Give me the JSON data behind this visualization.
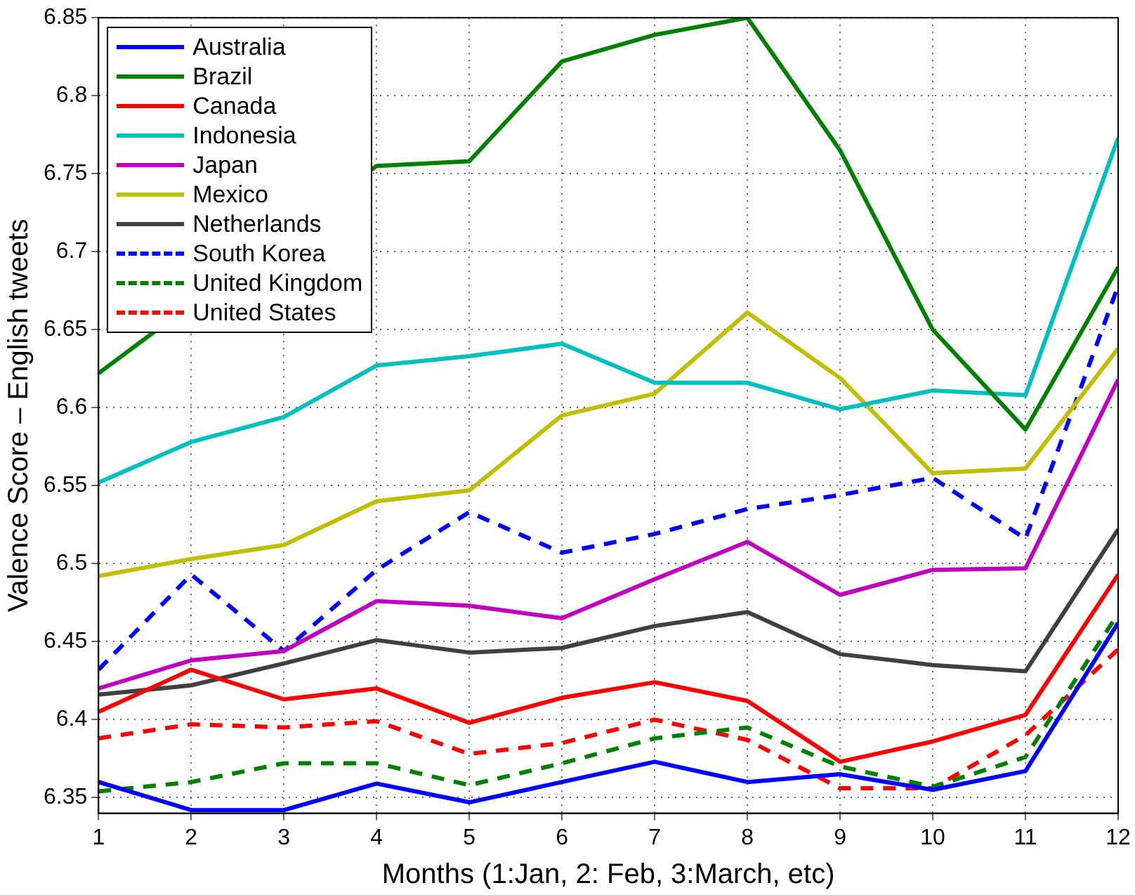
{
  "chart_data": {
    "type": "line",
    "xlabel": "Months (1:Jan, 2: Feb, 3:March, etc)",
    "ylabel": "Valence Score – English tweets",
    "x": [
      1,
      2,
      3,
      4,
      5,
      6,
      7,
      8,
      9,
      10,
      11,
      12
    ],
    "xlim": [
      1,
      12
    ],
    "xticks": [
      1,
      2,
      3,
      4,
      5,
      6,
      7,
      8,
      9,
      10,
      11,
      12
    ],
    "ylim": [
      6.34,
      6.85
    ],
    "yticks": [
      6.35,
      6.4,
      6.45,
      6.5,
      6.55,
      6.6,
      6.65,
      6.7,
      6.75,
      6.8,
      6.85
    ],
    "grid": true,
    "legend": "top left",
    "marker": "none",
    "series": [
      {
        "name": "Australia",
        "color": "#0000ff",
        "line_style": "solid",
        "values": [
          6.36,
          6.342,
          6.342,
          6.359,
          6.347,
          6.36,
          6.373,
          6.36,
          6.365,
          6.355,
          6.367,
          6.462
        ]
      },
      {
        "name": "Brazil",
        "color": "#008000",
        "line_style": "solid",
        "values": [
          6.622,
          null,
          null,
          6.755,
          6.758,
          6.822,
          6.839,
          6.85,
          6.765,
          6.65,
          6.586,
          6.69
        ]
      },
      {
        "name": "Canada",
        "color": "#ff0000",
        "line_style": "solid",
        "values": [
          6.405,
          6.432,
          6.413,
          6.42,
          6.398,
          6.414,
          6.424,
          6.412,
          6.373,
          6.386,
          6.403,
          6.493
        ]
      },
      {
        "name": "Indonesia",
        "color": "#00bfbf",
        "line_style": "solid",
        "values": [
          6.552,
          6.578,
          6.594,
          6.627,
          6.633,
          6.641,
          6.616,
          6.616,
          6.599,
          6.611,
          6.608,
          6.773
        ]
      },
      {
        "name": "Japan",
        "color": "#bf00bf",
        "line_style": "solid",
        "values": [
          6.42,
          6.438,
          6.444,
          6.476,
          6.473,
          6.465,
          6.49,
          6.514,
          6.48,
          6.496,
          6.497,
          6.618
        ]
      },
      {
        "name": "Mexico",
        "color": "#bfbf00",
        "line_style": "solid",
        "values": [
          6.492,
          6.503,
          6.512,
          6.54,
          6.547,
          6.595,
          6.609,
          6.661,
          6.619,
          6.558,
          6.561,
          6.638
        ]
      },
      {
        "name": "Netherlands",
        "color": "#404040",
        "line_style": "solid",
        "values": [
          6.416,
          6.422,
          6.436,
          6.451,
          6.443,
          6.446,
          6.46,
          6.469,
          6.442,
          6.435,
          6.431,
          6.522
        ]
      },
      {
        "name": "South Korea",
        "color": "#0000ff",
        "line_style": "dashed",
        "values": [
          6.432,
          6.493,
          6.444,
          6.496,
          6.533,
          6.507,
          6.519,
          6.535,
          6.544,
          6.555,
          6.516,
          6.678
        ]
      },
      {
        "name": "United Kingdom",
        "color": "#008000",
        "line_style": "dashed",
        "values": [
          6.354,
          6.36,
          6.372,
          6.372,
          6.358,
          6.372,
          6.388,
          6.395,
          6.37,
          6.357,
          6.376,
          6.468
        ]
      },
      {
        "name": "United States",
        "color": "#ff0000",
        "line_style": "dashed",
        "values": [
          6.388,
          6.397,
          6.395,
          6.399,
          6.378,
          6.385,
          6.4,
          6.387,
          6.356,
          6.356,
          6.39,
          6.445
        ]
      }
    ]
  }
}
